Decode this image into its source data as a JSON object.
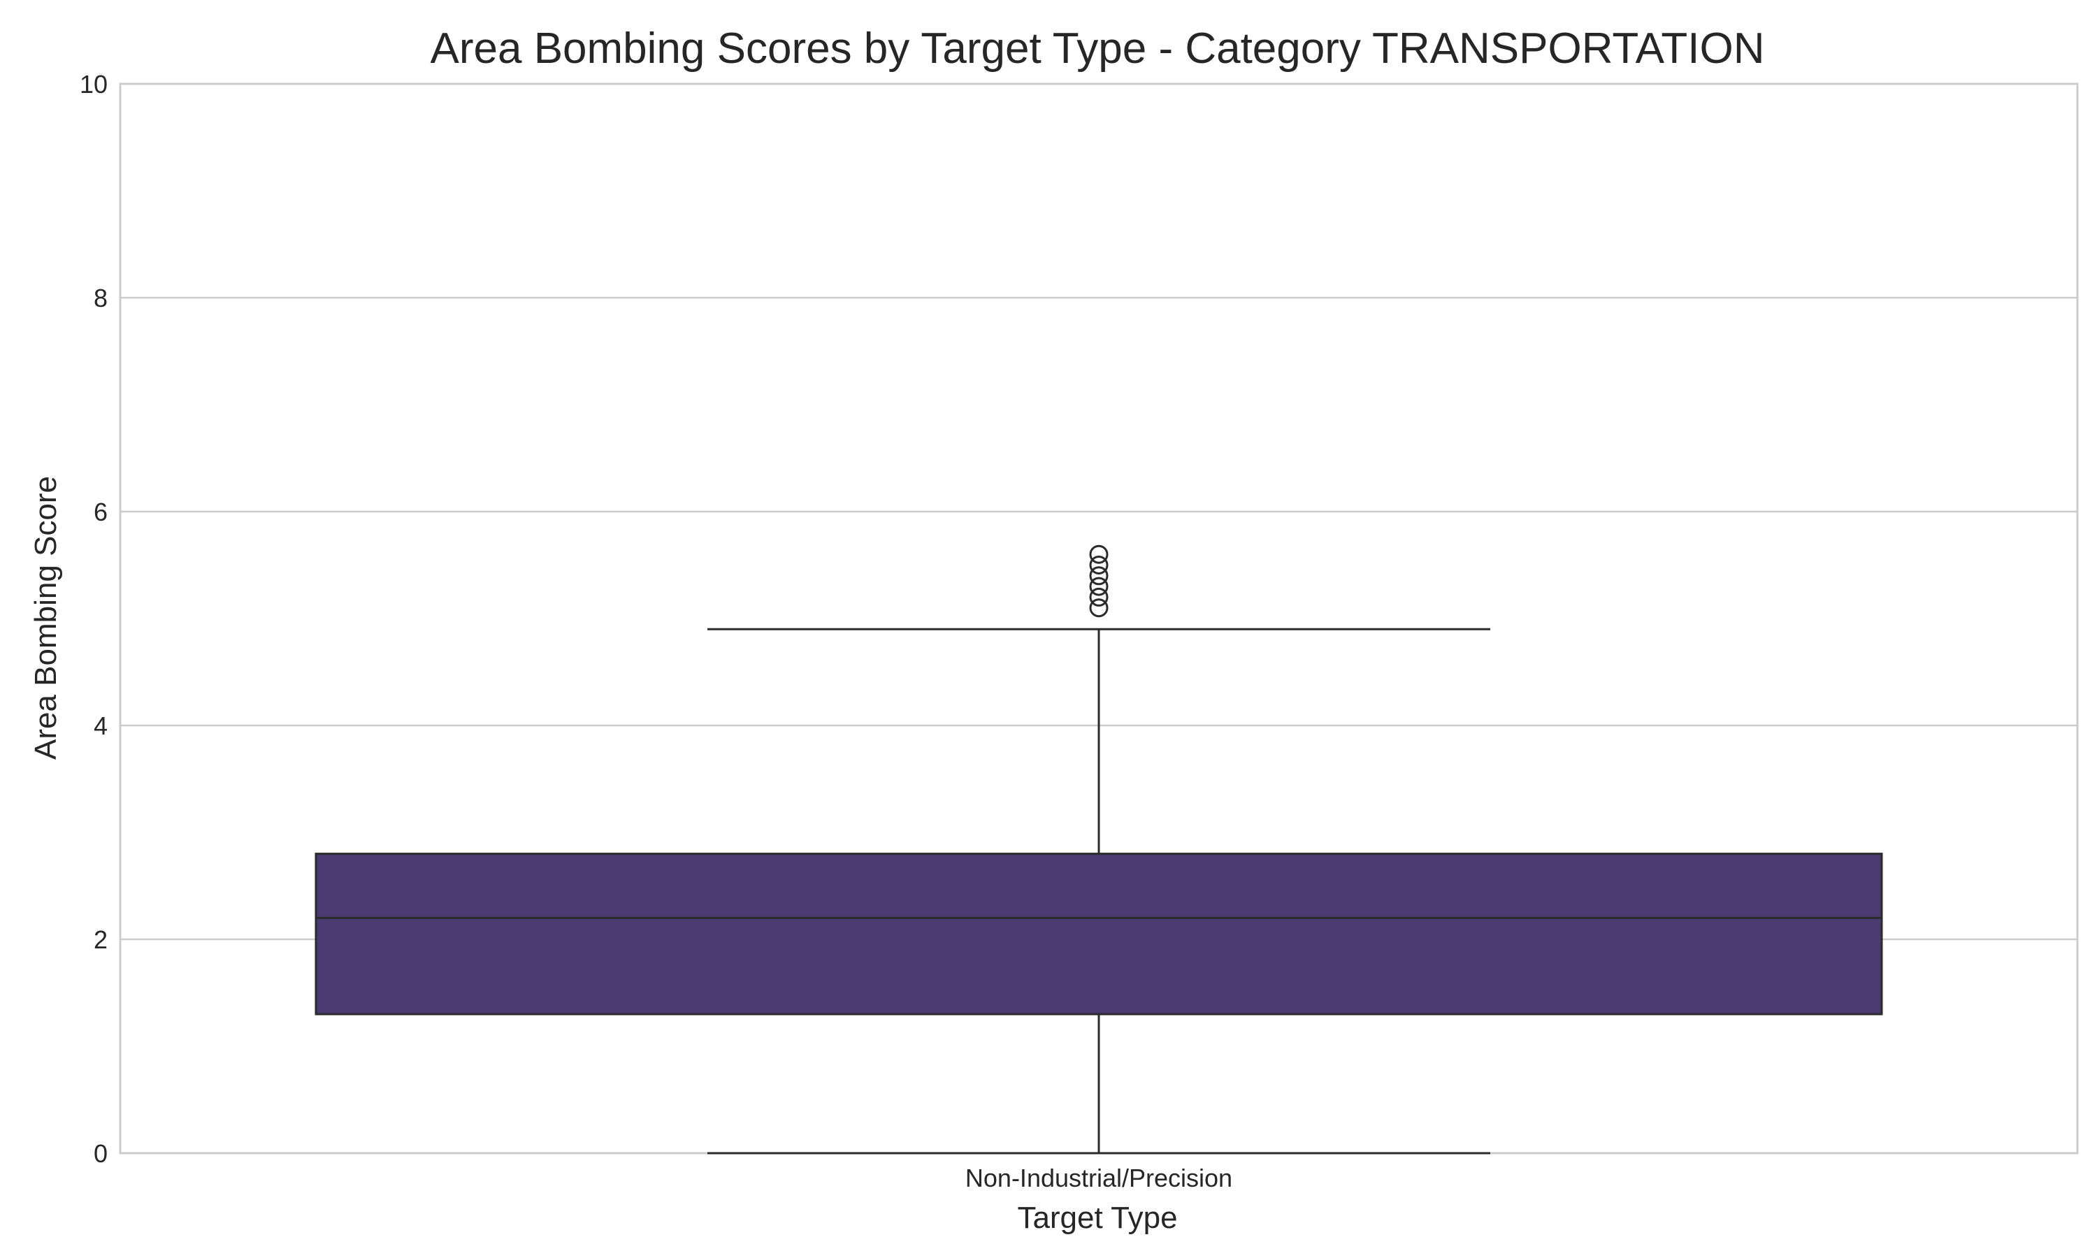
{
  "chart_data": {
    "type": "box",
    "title": "Area Bombing Scores by Target Type - Category TRANSPORTATION",
    "xlabel": "Target Type",
    "ylabel": "Area Bombing Score",
    "ylim": [
      0,
      10
    ],
    "yticks": [
      0,
      2,
      4,
      6,
      8,
      10
    ],
    "grid": true,
    "categories": [
      "Non-Industrial/Precision"
    ],
    "boxes": [
      {
        "category": "Non-Industrial/Precision",
        "whisker_low": 0.0,
        "q1": 1.3,
        "median": 2.2,
        "q3": 2.8,
        "whisker_high": 4.9,
        "outliers": [
          5.1,
          5.2,
          5.3,
          5.4,
          5.5,
          5.6
        ]
      }
    ],
    "colors": {
      "box_fill": "#4a3b72",
      "line": "#2b2b2b",
      "grid": "#cccccc",
      "spine": "#cccccc"
    }
  }
}
